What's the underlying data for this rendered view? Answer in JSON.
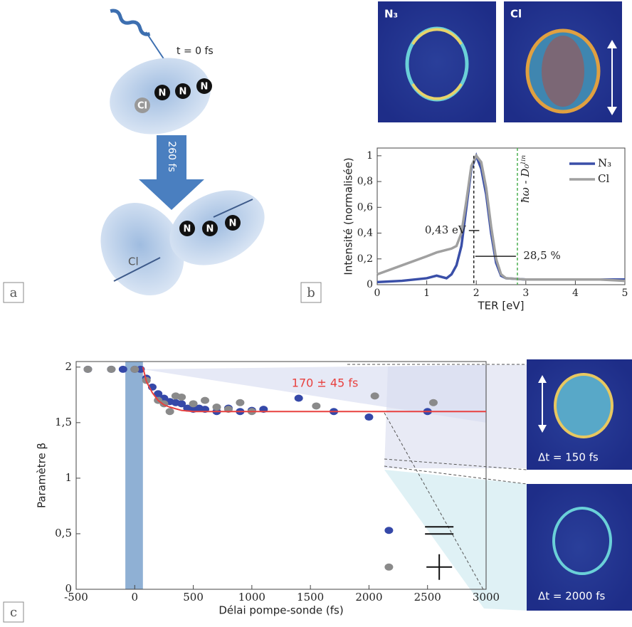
{
  "panel_labels": [
    "a",
    "b",
    "c"
  ],
  "diagram": {
    "time_start": "t = 0 fs",
    "duration": "260 fs",
    "atom_cl": "Cl",
    "atom_n": "N"
  },
  "images": {
    "n3": "N₃",
    "cl": "Cl",
    "dt_150": "Δt = 150 fs",
    "dt_2000": "Δt = 2000 fs"
  },
  "chart_data": [
    {
      "type": "line",
      "xlabel": "TER [eV]",
      "ylabel": "Intensité (normalisée)",
      "x": [
        0,
        0.5,
        1,
        1.2,
        1.4,
        1.5,
        1.6,
        1.7,
        1.8,
        1.9,
        2.0,
        2.1,
        2.2,
        2.3,
        2.4,
        2.5,
        2.6,
        3,
        3.5,
        4,
        4.5,
        5
      ],
      "series": [
        {
          "name": "N₃",
          "color": "#3a4fa8",
          "values": [
            0.02,
            0.03,
            0.05,
            0.07,
            0.05,
            0.08,
            0.15,
            0.3,
            0.6,
            0.9,
            1.0,
            0.9,
            0.7,
            0.4,
            0.17,
            0.07,
            0.05,
            0.04,
            0.04,
            0.04,
            0.04,
            0.04
          ]
        },
        {
          "name": "Cl",
          "color": "#a0a0a0",
          "values": [
            0.08,
            0.15,
            0.22,
            0.25,
            0.27,
            0.28,
            0.3,
            0.4,
            0.65,
            0.92,
            1.0,
            0.95,
            0.75,
            0.45,
            0.2,
            0.08,
            0.05,
            0.04,
            0.04,
            0.04,
            0.04,
            0.03
          ]
        }
      ],
      "xlim": [
        0,
        5
      ],
      "ylim": [
        0,
        1.06
      ],
      "xticks": [
        0,
        1,
        2,
        3,
        4,
        5
      ],
      "yticks": [
        0,
        {
          "value": 0.2,
          "label": "0,2"
        },
        {
          "value": 0.4,
          "label": "0,4"
        },
        {
          "value": 0.6,
          "label": "0,6"
        },
        {
          "value": 0.8,
          "label": "0,8"
        },
        1
      ],
      "annotations": [
        "0,43 eV",
        "28,5 %"
      ],
      "vlines": [
        {
          "x": 1.95,
          "color": "#222"
        },
        {
          "x": 2.83,
          "color": "#4caf50",
          "label": "ħω - D₀ˡⁱⁿ"
        }
      ],
      "legend": "upper right"
    },
    {
      "type": "scatter",
      "xlabel": "Délai pompe-sonde (fs)",
      "ylabel": "Paramètre β",
      "xlim": [
        -500,
        3000
      ],
      "ylim": [
        0,
        2.05
      ],
      "xticks": [
        -500,
        0,
        500,
        1000,
        1500,
        2000,
        2500,
        3000
      ],
      "yticks": [
        0,
        {
          "value": 0.5,
          "label": "0,5"
        },
        1,
        {
          "value": 1.5,
          "label": "1,5"
        },
        2
      ],
      "band": [
        -80,
        70
      ],
      "band_color": "#8fb0d4",
      "annotation": "170 ± 45 fs",
      "annotation_color": "#e8413f",
      "series": [
        {
          "color": "#3548a8",
          "x": [
            -400,
            -200,
            -100,
            0,
            50,
            100,
            150,
            200,
            250,
            300,
            350,
            400,
            450,
            500,
            550,
            600,
            700,
            800,
            900,
            1000,
            1100,
            1400,
            1700,
            2000,
            2500
          ],
          "values": [
            1.98,
            1.98,
            1.98,
            1.98,
            1.98,
            1.9,
            1.82,
            1.76,
            1.72,
            1.69,
            1.68,
            1.67,
            1.63,
            1.62,
            1.63,
            1.62,
            1.6,
            1.63,
            1.6,
            1.61,
            1.62,
            1.72,
            1.6,
            1.55,
            1.6
          ]
        },
        {
          "color": "#8a8a8a",
          "x": [
            -400,
            -200,
            0,
            100,
            200,
            250,
            300,
            350,
            400,
            500,
            600,
            700,
            800,
            900,
            1000,
            1550,
            2050,
            2550
          ],
          "values": [
            1.98,
            1.98,
            1.98,
            1.88,
            1.7,
            1.67,
            1.6,
            1.74,
            1.73,
            1.67,
            1.7,
            1.64,
            1.62,
            1.68,
            1.6,
            1.65,
            1.74,
            1.68
          ]
        },
        {
          "color": "#e8413f",
          "mode": "line",
          "x": [
            70,
            100,
            150,
            200,
            250,
            300,
            400,
            500,
            700,
            3000
          ],
          "values": [
            2,
            1.87,
            1.77,
            1.7,
            1.66,
            1.64,
            1.61,
            1.6,
            1.6,
            1.6
          ]
        }
      ]
    }
  ]
}
